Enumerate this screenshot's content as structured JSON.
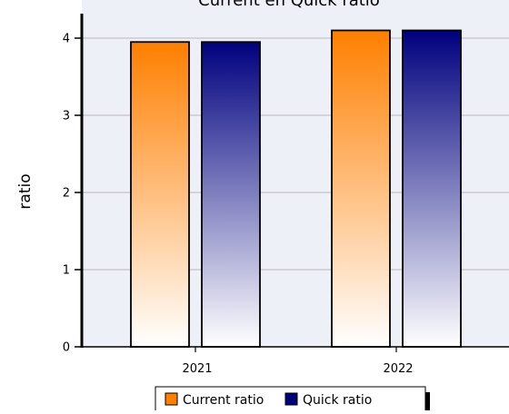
{
  "chart_data": {
    "type": "bar",
    "title": "Current en Quick ratio",
    "ylabel": "ratio",
    "xlabel": "",
    "categories": [
      "2021",
      "2022"
    ],
    "series": [
      {
        "name": "Current ratio",
        "values": [
          3.95,
          4.1
        ],
        "color": "#FF7F00"
      },
      {
        "name": "Quick ratio",
        "values": [
          3.95,
          4.1
        ],
        "color": "#00007F"
      }
    ],
    "ylim": [
      0,
      4.3
    ],
    "yticks": [
      "0",
      "1",
      "2",
      "3",
      "4"
    ],
    "grid": true,
    "legend": "bottom",
    "plot_background": "#EEF0F8"
  }
}
